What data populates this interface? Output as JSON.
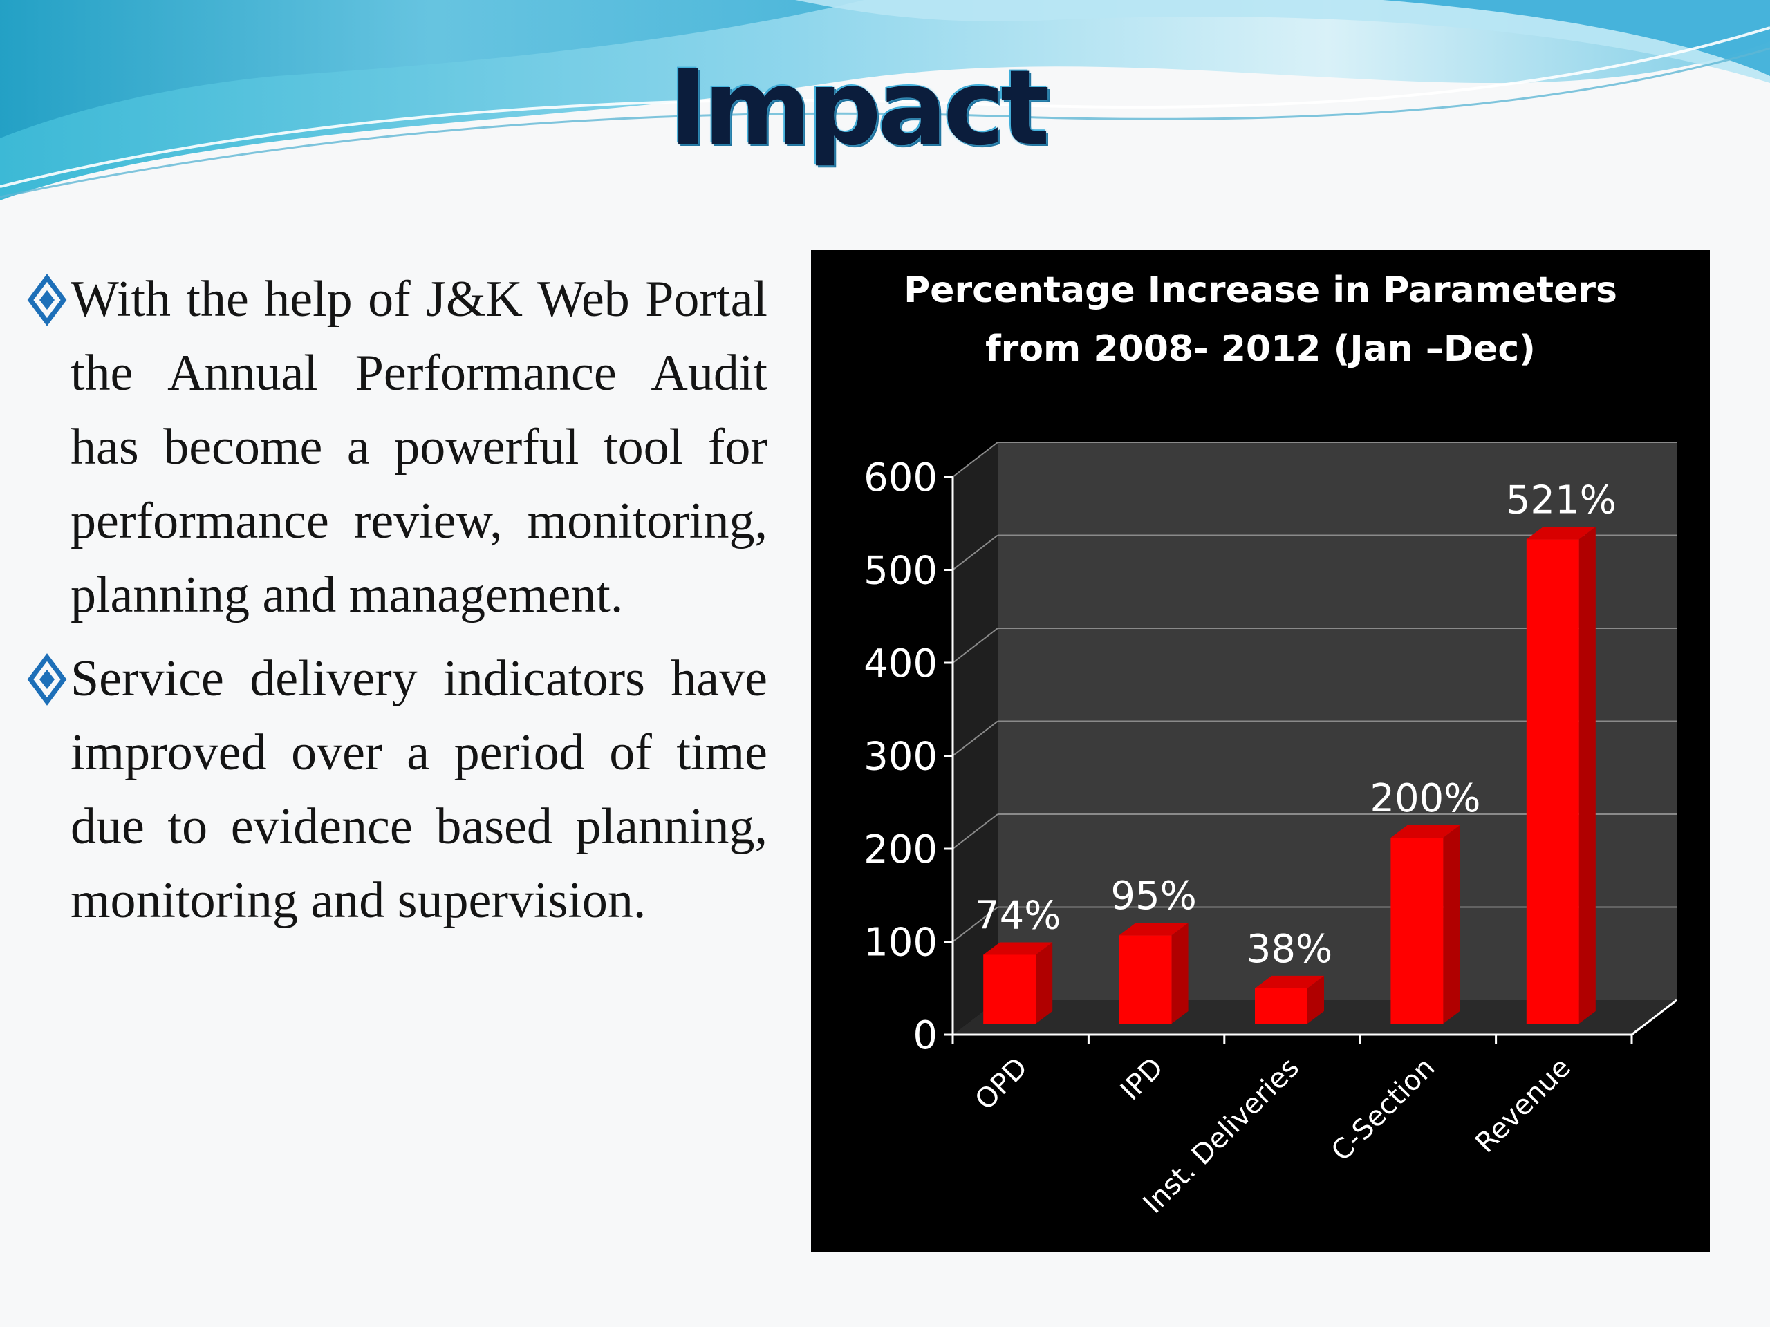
{
  "slide": {
    "title": "Impact",
    "bullets": [
      "With the help of J&K Web Portal the Annual Performance Audit has become a powerful tool for performance review, monitoring, planning and management.",
      "Service delivery indicators have improved over a period of time due to evidence based planning, monitoring and supervision."
    ]
  },
  "colors": {
    "bar": "#ff0000",
    "bar_side": "#b00000",
    "bar_top": "#d80000",
    "chart_bg": "#000000",
    "wall": "#3b3b3b",
    "floor": "#2a2a2a",
    "gridline": "#8a8a8a",
    "title_color": "#0b1d3c",
    "bullet_icon": "#1d6fb8"
  },
  "chart_data": {
    "type": "bar",
    "title": "Percentage Increase in Parameters from 2008- 2012 (Jan –Dec)",
    "title_lines": [
      "Percentage Increase in Parameters",
      "from 2008- 2012 (Jan –Dec)"
    ],
    "categories": [
      "OPD",
      "IPD",
      "Inst. Deliveries",
      "C-Section",
      "Revenue"
    ],
    "values": [
      74,
      95,
      38,
      200,
      521
    ],
    "data_labels": [
      "74%",
      "95%",
      "38%",
      "200%",
      "521%"
    ],
    "xlabel": "",
    "ylabel": "",
    "ylim": [
      0,
      600
    ],
    "yticks": [
      0,
      100,
      200,
      300,
      400,
      500,
      600
    ],
    "ytick_labels": [
      "0",
      "100",
      "200",
      "300",
      "400",
      "500",
      "600"
    ],
    "grid": true,
    "legend": "none"
  }
}
